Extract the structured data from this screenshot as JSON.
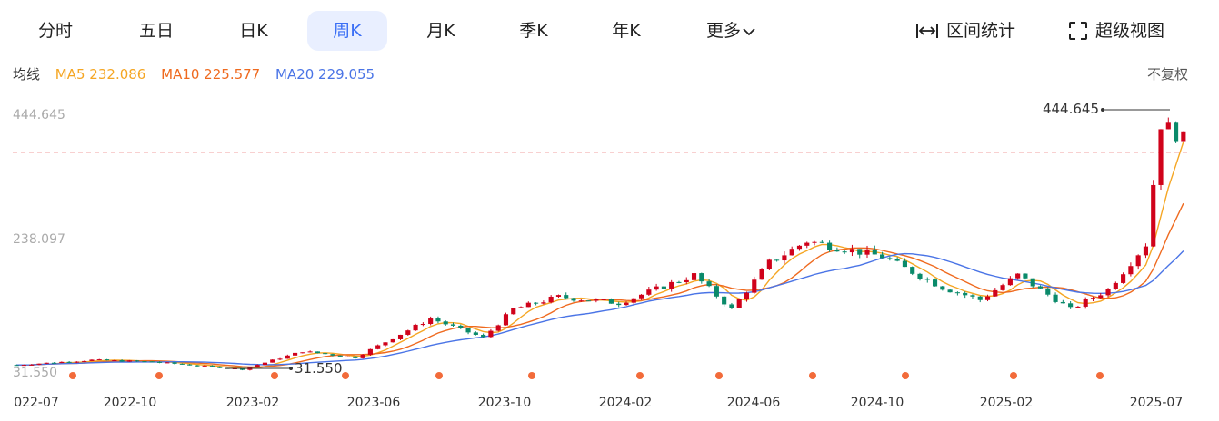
{
  "tabs": [
    {
      "label": "分时",
      "active": false
    },
    {
      "label": "五日",
      "active": false
    },
    {
      "label": "日K",
      "active": false
    },
    {
      "label": "周K",
      "active": true
    },
    {
      "label": "月K",
      "active": false
    },
    {
      "label": "季K",
      "active": false
    },
    {
      "label": "年K",
      "active": false
    },
    {
      "label": "更多",
      "active": false
    }
  ],
  "tools": {
    "interval": "区间统计",
    "fullscreen": "超级视图"
  },
  "legend": {
    "title": "均线",
    "ma5": "MA5 232.086",
    "ma10": "MA10 225.577",
    "ma20": "MA20 229.055",
    "adjust": "不复权"
  },
  "colors": {
    "up": "#d0021b",
    "down": "#0a8a6a",
    "ma5": "#f5a623",
    "ma10": "#ef6a1f",
    "ma20": "#4a74e6",
    "dashed": "#f0a0a0",
    "active_tab": "#3b6ff5",
    "marker": "#f26b3a"
  },
  "chart_data": {
    "type": "candlestick",
    "y_labels": [
      "444.645",
      "238.097",
      "31.550"
    ],
    "ylim": [
      31.55,
      444.645
    ],
    "max_label": "444.645",
    "min_label": "31.550",
    "x_labels": [
      "022-07",
      "2022-10",
      "2023-02",
      "2023-06",
      "2023-10",
      "2024-02",
      "2024-06",
      "2024-10",
      "2025-02",
      "2025-07"
    ],
    "series_price_hint": [
      [
        0,
        40
      ],
      [
        10,
        48
      ],
      [
        18,
        45
      ],
      [
        30,
        33
      ],
      [
        38,
        62
      ],
      [
        45,
        52
      ],
      [
        55,
        115
      ],
      [
        62,
        84
      ],
      [
        66,
        130
      ],
      [
        72,
        150
      ],
      [
        80,
        140
      ],
      [
        90,
        185
      ],
      [
        95,
        130
      ],
      [
        100,
        205
      ],
      [
        105,
        240
      ],
      [
        115,
        215
      ],
      [
        123,
        165
      ],
      [
        128,
        145
      ],
      [
        133,
        185
      ],
      [
        140,
        130
      ],
      [
        145,
        162
      ],
      [
        150,
        235
      ],
      [
        152,
        430
      ],
      [
        155,
        405
      ]
    ]
  }
}
